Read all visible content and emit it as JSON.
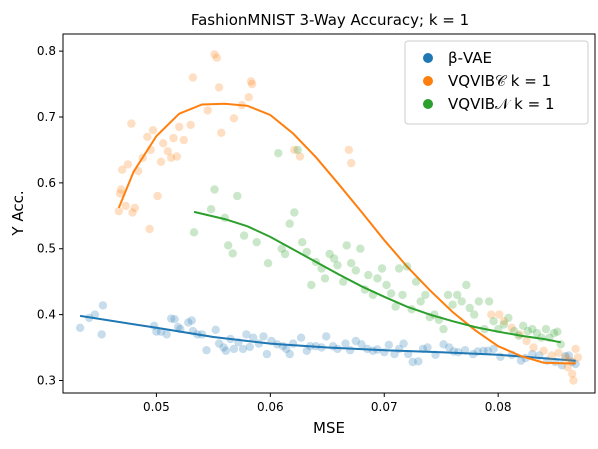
{
  "chart_data": {
    "type": "scatter",
    "title": "FashionMNIST 3-Way Accuracy; k = 1",
    "xlabel": "MSE",
    "ylabel": "Y Acc.",
    "xlim": [
      0.0418,
      0.0885
    ],
    "ylim": [
      0.281,
      0.826
    ],
    "x_ticks": [
      0.05,
      0.06,
      0.07,
      0.08
    ],
    "x_tick_labels": [
      "0.05",
      "0.06",
      "0.07",
      "0.08"
    ],
    "y_ticks": [
      0.3,
      0.4,
      0.5,
      0.6,
      0.7,
      0.8
    ],
    "y_tick_labels": [
      "0.3",
      "0.4",
      "0.5",
      "0.6",
      "0.7",
      "0.8"
    ],
    "grid": false,
    "legend_position": "top-right",
    "series": [
      {
        "name": "β-VAE",
        "color": "#1f77b4",
        "points": [
          [
            0.0433,
            0.38
          ],
          [
            0.0441,
            0.395
          ],
          [
            0.0446,
            0.4
          ],
          [
            0.0452,
            0.37
          ],
          [
            0.0453,
            0.414
          ],
          [
            0.0498,
            0.383
          ],
          [
            0.05,
            0.374
          ],
          [
            0.0504,
            0.374
          ],
          [
            0.0509,
            0.37
          ],
          [
            0.0513,
            0.394
          ],
          [
            0.0516,
            0.393
          ],
          [
            0.0519,
            0.381
          ],
          [
            0.0521,
            0.378
          ],
          [
            0.0528,
            0.388
          ],
          [
            0.0531,
            0.391
          ],
          [
            0.0532,
            0.375
          ],
          [
            0.0536,
            0.37
          ],
          [
            0.054,
            0.37
          ],
          [
            0.0544,
            0.346
          ],
          [
            0.0552,
            0.377
          ],
          [
            0.0555,
            0.356
          ],
          [
            0.0559,
            0.35
          ],
          [
            0.0561,
            0.345
          ],
          [
            0.0565,
            0.363
          ],
          [
            0.0568,
            0.348
          ],
          [
            0.0572,
            0.358
          ],
          [
            0.0576,
            0.348
          ],
          [
            0.0579,
            0.37
          ],
          [
            0.0582,
            0.351
          ],
          [
            0.0585,
            0.365
          ],
          [
            0.059,
            0.356
          ],
          [
            0.0594,
            0.367
          ],
          [
            0.0597,
            0.34
          ],
          [
            0.0601,
            0.36
          ],
          [
            0.0606,
            0.355
          ],
          [
            0.0611,
            0.352
          ],
          [
            0.0614,
            0.348
          ],
          [
            0.0617,
            0.34
          ],
          [
            0.062,
            0.356
          ],
          [
            0.0627,
            0.365
          ],
          [
            0.0632,
            0.345
          ],
          [
            0.0635,
            0.352
          ],
          [
            0.064,
            0.352
          ],
          [
            0.0645,
            0.35
          ],
          [
            0.0649,
            0.367
          ],
          [
            0.0655,
            0.352
          ],
          [
            0.0659,
            0.348
          ],
          [
            0.0666,
            0.356
          ],
          [
            0.067,
            0.346
          ],
          [
            0.0675,
            0.36
          ],
          [
            0.068,
            0.355
          ],
          [
            0.0685,
            0.348
          ],
          [
            0.069,
            0.345
          ],
          [
            0.0694,
            0.347
          ],
          [
            0.07,
            0.343
          ],
          [
            0.0704,
            0.354
          ],
          [
            0.0709,
            0.34
          ],
          [
            0.0713,
            0.348
          ],
          [
            0.0717,
            0.356
          ],
          [
            0.0721,
            0.34
          ],
          [
            0.0725,
            0.328
          ],
          [
            0.073,
            0.329
          ],
          [
            0.0734,
            0.348
          ],
          [
            0.0738,
            0.35
          ],
          [
            0.0745,
            0.339
          ],
          [
            0.0752,
            0.355
          ],
          [
            0.0757,
            0.35
          ],
          [
            0.0761,
            0.344
          ],
          [
            0.0765,
            0.343
          ],
          [
            0.0771,
            0.346
          ],
          [
            0.0778,
            0.34
          ],
          [
            0.0782,
            0.344
          ],
          [
            0.0787,
            0.345
          ],
          [
            0.0791,
            0.345
          ],
          [
            0.0796,
            0.348
          ],
          [
            0.0802,
            0.336
          ],
          [
            0.0812,
            0.339
          ],
          [
            0.082,
            0.33
          ],
          [
            0.0824,
            0.334
          ],
          [
            0.083,
            0.34
          ],
          [
            0.0836,
            0.338
          ],
          [
            0.0843,
            0.33
          ],
          [
            0.085,
            0.328
          ],
          [
            0.0856,
            0.323
          ],
          [
            0.0859,
            0.337
          ],
          [
            0.0862,
            0.338
          ],
          [
            0.0865,
            0.328
          ],
          [
            0.0868,
            0.325
          ]
        ],
        "fit": [
          [
            0.0433,
            0.398
          ],
          [
            0.05,
            0.38
          ],
          [
            0.055,
            0.366
          ],
          [
            0.06,
            0.356
          ],
          [
            0.065,
            0.35
          ],
          [
            0.07,
            0.346
          ],
          [
            0.075,
            0.343
          ],
          [
            0.08,
            0.339
          ],
          [
            0.0868,
            0.33
          ]
        ]
      },
      {
        "name": "VQVIB𝒞   k = 1",
        "color": "#ff7f0e",
        "points": [
          [
            0.0467,
            0.557
          ],
          [
            0.0468,
            0.584
          ],
          [
            0.0469,
            0.59
          ],
          [
            0.047,
            0.62
          ],
          [
            0.0473,
            0.565
          ],
          [
            0.0475,
            0.628
          ],
          [
            0.0478,
            0.69
          ],
          [
            0.0479,
            0.555
          ],
          [
            0.0481,
            0.562
          ],
          [
            0.0484,
            0.618
          ],
          [
            0.0488,
            0.638
          ],
          [
            0.0492,
            0.67
          ],
          [
            0.0494,
            0.53
          ],
          [
            0.0495,
            0.65
          ],
          [
            0.0497,
            0.68
          ],
          [
            0.0501,
            0.58
          ],
          [
            0.0504,
            0.632
          ],
          [
            0.0506,
            0.66
          ],
          [
            0.051,
            0.648
          ],
          [
            0.0513,
            0.638
          ],
          [
            0.0515,
            0.668
          ],
          [
            0.0518,
            0.64
          ],
          [
            0.052,
            0.685
          ],
          [
            0.0524,
            0.665
          ],
          [
            0.053,
            0.688
          ],
          [
            0.0532,
            0.76
          ],
          [
            0.0545,
            0.71
          ],
          [
            0.0551,
            0.795
          ],
          [
            0.0553,
            0.79
          ],
          [
            0.0555,
            0.745
          ],
          [
            0.0557,
            0.676
          ],
          [
            0.0568,
            0.698
          ],
          [
            0.0575,
            0.718
          ],
          [
            0.0581,
            0.73
          ],
          [
            0.0583,
            0.754
          ],
          [
            0.0584,
            0.75
          ],
          [
            0.0621,
            0.65
          ],
          [
            0.0626,
            0.64
          ],
          [
            0.0669,
            0.65
          ],
          [
            0.0671,
            0.63
          ],
          [
            0.0794,
            0.4
          ],
          [
            0.0801,
            0.4
          ],
          [
            0.0805,
            0.39
          ],
          [
            0.0812,
            0.38
          ],
          [
            0.0819,
            0.37
          ],
          [
            0.0825,
            0.36
          ],
          [
            0.0831,
            0.35
          ],
          [
            0.084,
            0.345
          ],
          [
            0.0847,
            0.338
          ],
          [
            0.0853,
            0.342
          ],
          [
            0.0859,
            0.335
          ],
          [
            0.0861,
            0.32
          ],
          [
            0.0863,
            0.33
          ],
          [
            0.0865,
            0.31
          ],
          [
            0.0866,
            0.3
          ],
          [
            0.0868,
            0.348
          ],
          [
            0.087,
            0.335
          ]
        ],
        "fit": [
          [
            0.0467,
            0.562
          ],
          [
            0.048,
            0.617
          ],
          [
            0.05,
            0.671
          ],
          [
            0.052,
            0.705
          ],
          [
            0.054,
            0.719
          ],
          [
            0.056,
            0.72
          ],
          [
            0.058,
            0.717
          ],
          [
            0.06,
            0.703
          ],
          [
            0.062,
            0.675
          ],
          [
            0.064,
            0.639
          ],
          [
            0.066,
            0.598
          ],
          [
            0.068,
            0.556
          ],
          [
            0.07,
            0.513
          ],
          [
            0.072,
            0.473
          ],
          [
            0.074,
            0.437
          ],
          [
            0.076,
            0.404
          ],
          [
            0.078,
            0.376
          ],
          [
            0.08,
            0.352
          ],
          [
            0.082,
            0.337
          ],
          [
            0.084,
            0.327
          ],
          [
            0.086,
            0.326
          ],
          [
            0.0868,
            0.326
          ]
        ]
      },
      {
        "name": "VQVIB𝒩   k = 1",
        "color": "#2ca02c",
        "points": [
          [
            0.0533,
            0.525
          ],
          [
            0.0548,
            0.56
          ],
          [
            0.0551,
            0.59
          ],
          [
            0.056,
            0.547
          ],
          [
            0.0563,
            0.505
          ],
          [
            0.0567,
            0.493
          ],
          [
            0.0571,
            0.58
          ],
          [
            0.0577,
            0.52
          ],
          [
            0.0588,
            0.51
          ],
          [
            0.0598,
            0.478
          ],
          [
            0.0607,
            0.645
          ],
          [
            0.061,
            0.5
          ],
          [
            0.0613,
            0.492
          ],
          [
            0.0617,
            0.538
          ],
          [
            0.0621,
            0.555
          ],
          [
            0.0624,
            0.65
          ],
          [
            0.0628,
            0.51
          ],
          [
            0.0632,
            0.495
          ],
          [
            0.0636,
            0.445
          ],
          [
            0.064,
            0.48
          ],
          [
            0.0645,
            0.47
          ],
          [
            0.0648,
            0.455
          ],
          [
            0.0652,
            0.492
          ],
          [
            0.0656,
            0.485
          ],
          [
            0.0659,
            0.475
          ],
          [
            0.0664,
            0.45
          ],
          [
            0.0667,
            0.505
          ],
          [
            0.0671,
            0.478
          ],
          [
            0.0675,
            0.467
          ],
          [
            0.0679,
            0.5
          ],
          [
            0.0683,
            0.438
          ],
          [
            0.0686,
            0.46
          ],
          [
            0.069,
            0.43
          ],
          [
            0.0694,
            0.455
          ],
          [
            0.0698,
            0.47
          ],
          [
            0.0702,
            0.445
          ],
          [
            0.0706,
            0.432
          ],
          [
            0.071,
            0.412
          ],
          [
            0.0713,
            0.47
          ],
          [
            0.0716,
            0.43
          ],
          [
            0.072,
            0.473
          ],
          [
            0.0724,
            0.408
          ],
          [
            0.0728,
            0.45
          ],
          [
            0.0732,
            0.42
          ],
          [
            0.0736,
            0.43
          ],
          [
            0.074,
            0.396
          ],
          [
            0.0744,
            0.4
          ],
          [
            0.0748,
            0.392
          ],
          [
            0.0752,
            0.378
          ],
          [
            0.0756,
            0.43
          ],
          [
            0.076,
            0.415
          ],
          [
            0.0764,
            0.43
          ],
          [
            0.0768,
            0.42
          ],
          [
            0.0772,
            0.445
          ],
          [
            0.0775,
            0.41
          ],
          [
            0.0779,
            0.4
          ],
          [
            0.0783,
            0.42
          ],
          [
            0.0788,
            0.378
          ],
          [
            0.0792,
            0.42
          ],
          [
            0.0796,
            0.39
          ],
          [
            0.08,
            0.378
          ],
          [
            0.0805,
            0.385
          ],
          [
            0.0809,
            0.395
          ],
          [
            0.0814,
            0.375
          ],
          [
            0.0818,
            0.368
          ],
          [
            0.0822,
            0.383
          ],
          [
            0.0826,
            0.375
          ],
          [
            0.083,
            0.378
          ],
          [
            0.0834,
            0.372
          ],
          [
            0.0838,
            0.365
          ],
          [
            0.0842,
            0.378
          ],
          [
            0.0845,
            0.365
          ],
          [
            0.0849,
            0.372
          ],
          [
            0.0852,
            0.374
          ],
          [
            0.0855,
            0.355
          ]
        ],
        "fit": [
          [
            0.0533,
            0.556
          ],
          [
            0.056,
            0.545
          ],
          [
            0.058,
            0.534
          ],
          [
            0.06,
            0.518
          ],
          [
            0.062,
            0.499
          ],
          [
            0.064,
            0.48
          ],
          [
            0.066,
            0.461
          ],
          [
            0.068,
            0.443
          ],
          [
            0.07,
            0.427
          ],
          [
            0.072,
            0.412
          ],
          [
            0.074,
            0.4
          ],
          [
            0.076,
            0.39
          ],
          [
            0.078,
            0.381
          ],
          [
            0.08,
            0.374
          ],
          [
            0.082,
            0.368
          ],
          [
            0.084,
            0.363
          ],
          [
            0.0855,
            0.358
          ]
        ]
      }
    ]
  }
}
